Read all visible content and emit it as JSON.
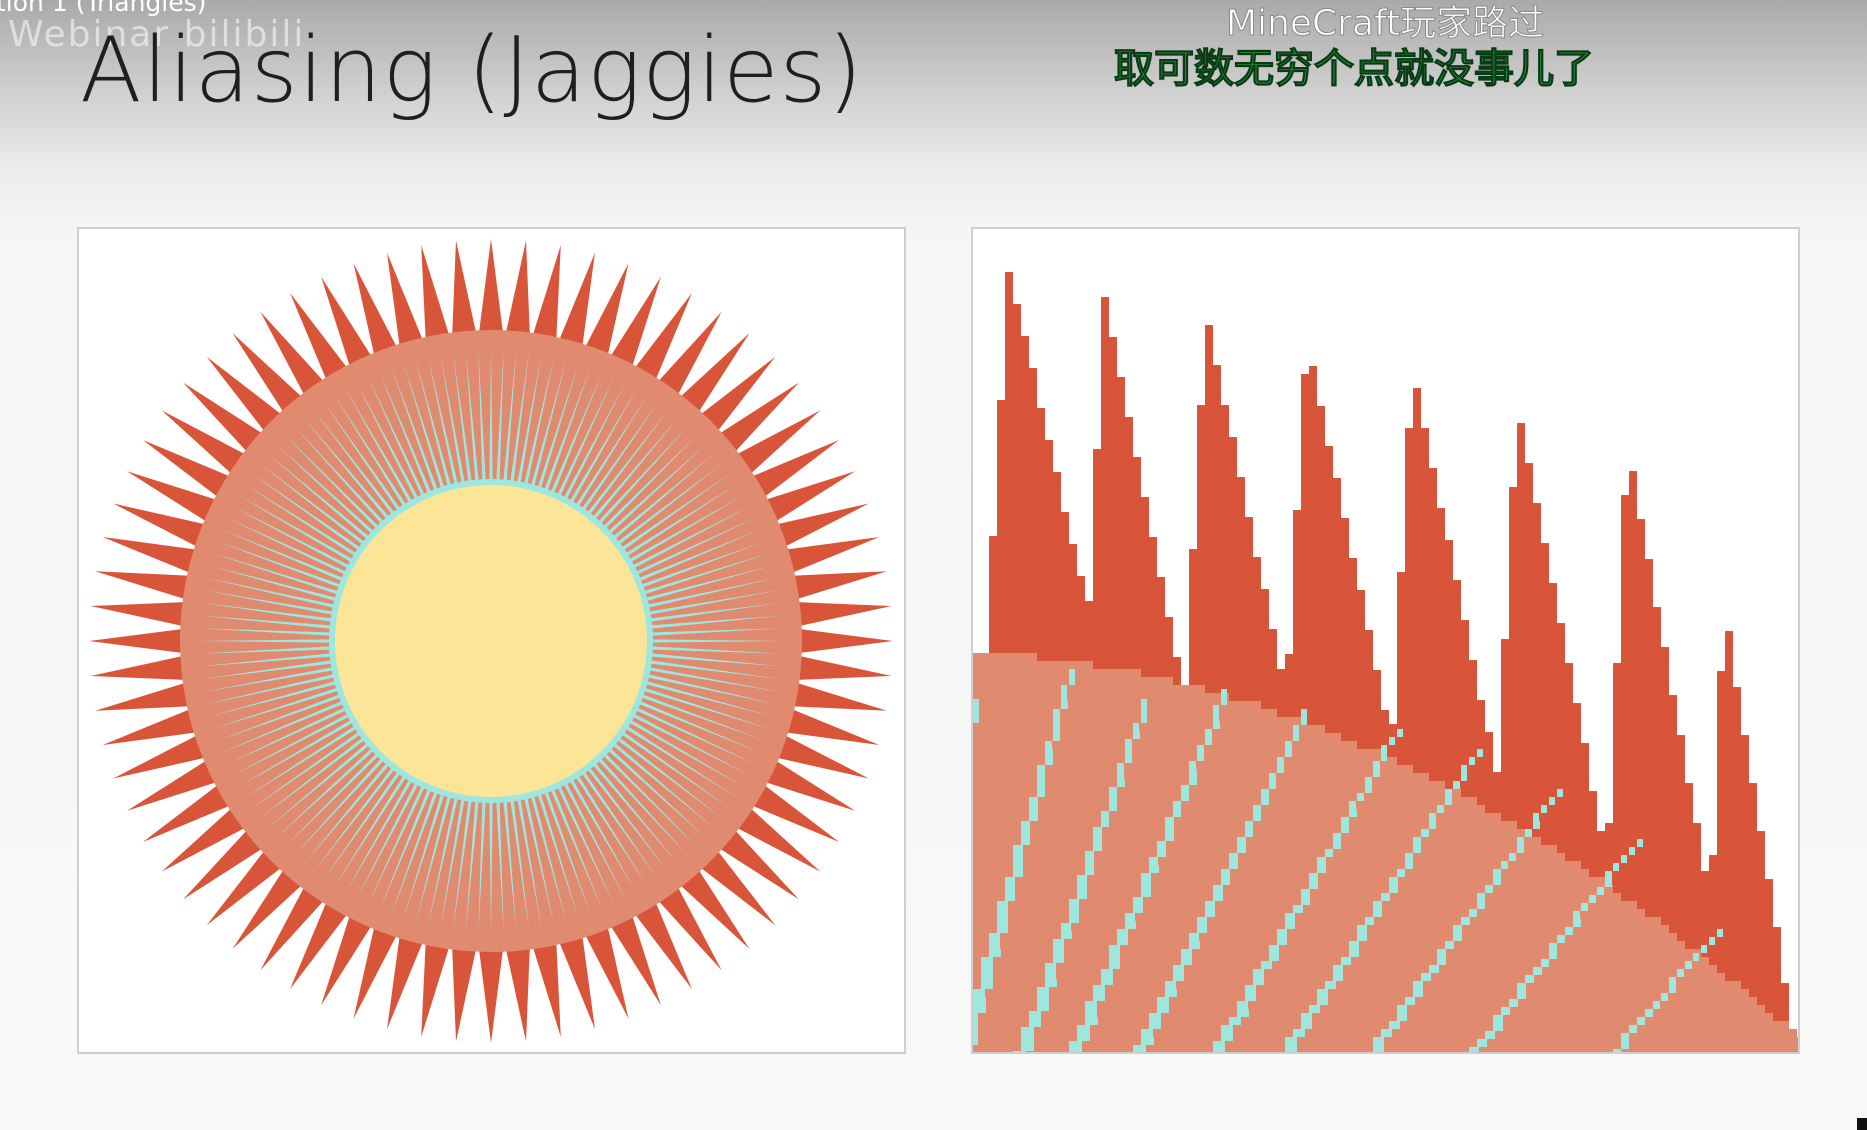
{
  "video": {
    "caption": "tion 1 (Triangles)",
    "watermark": "Webinar bilibili"
  },
  "slide": {
    "title": "Aliasing (Jaggies)"
  },
  "danmaku": [
    {
      "text": "MineCraft玩家路过",
      "color": "#ffffff"
    },
    {
      "text": "取可数无穷个点就没事儿了",
      "color": "#1f9c3c"
    }
  ],
  "figures": {
    "left": {
      "name": "sunburst-antialiased"
    },
    "right": {
      "name": "sunburst-aliased-zoom"
    }
  },
  "colors": {
    "spike_red": "#d9553a",
    "ring_salmon": "#e08b70",
    "ray_cyan": "#9ee7df",
    "center_yellow": "#fde598",
    "slide_bg": "#f8f8f8"
  }
}
